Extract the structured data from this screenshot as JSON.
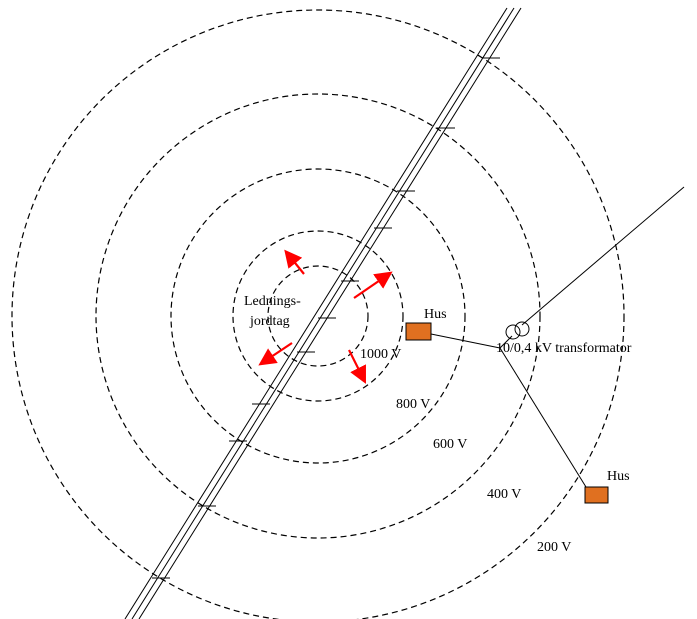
{
  "labels": {
    "ground": [
      "Lednings-",
      "jordtag"
    ],
    "house_1": "Hus",
    "house_2": "Hus",
    "transformer": "10/0,4 kV transformator",
    "v1000": "1000 V",
    "v800": "800 V",
    "v600": "600 V",
    "v400": "400 V",
    "v200": "200 V"
  },
  "colors": {
    "arrow": "#ff0000",
    "house": "#e07020",
    "line": "#000000"
  }
}
